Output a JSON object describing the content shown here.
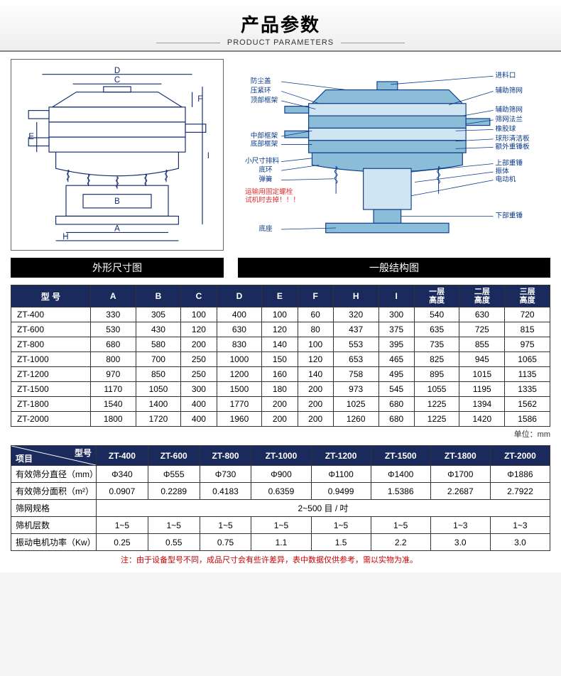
{
  "header": {
    "cn": "产品参数",
    "en": "PRODUCT PARAMETERS"
  },
  "captions": {
    "left": "外形尺寸图",
    "right": "一般结构图"
  },
  "diagram_left": {
    "labels": {
      "A": "A",
      "B": "B",
      "C": "C",
      "D": "D",
      "E": "E",
      "F": "F",
      "H": "H",
      "I": "I"
    },
    "line_color": "#102a6b",
    "bg": "#ffffff"
  },
  "diagram_right": {
    "labels": {
      "fcg": "防尘盖",
      "yjh": "压紧环",
      "dbkj": "顶部框架",
      "zbkj": "中部框架",
      "dbkj2": "底部框架",
      "xczl": "小尺寸排料",
      "dh": "底环",
      "th": "弹簧",
      "warn1": "运输用固定螺栓",
      "warn2": "试机时去掉！！！",
      "dz": "底座",
      "jlk": "进料口",
      "fzsw": "辅助筛网",
      "fzsw2": "辅助筛网",
      "swfl": "筛网法兰",
      "xjq": "橡胶球",
      "qxqjb": "球形清洁板",
      "ewzcb": "额外重锤板",
      "sbzc": "上部重锤",
      "zt": "振体",
      "ddj": "电动机",
      "xbzc": "下部重锤"
    },
    "fill_color": "#8bbdd9",
    "line_color": "#0a3a8a",
    "warn_color": "#e03030"
  },
  "table1": {
    "header": [
      "型 号",
      "A",
      "B",
      "C",
      "D",
      "E",
      "F",
      "H",
      "I",
      "一层\n高度",
      "二层\n高度",
      "三层\n高度"
    ],
    "rows": [
      [
        "ZT-400",
        "330",
        "305",
        "100",
        "400",
        "100",
        "60",
        "320",
        "300",
        "540",
        "630",
        "720"
      ],
      [
        "ZT-600",
        "530",
        "430",
        "120",
        "630",
        "120",
        "80",
        "437",
        "375",
        "635",
        "725",
        "815"
      ],
      [
        "ZT-800",
        "680",
        "580",
        "200",
        "830",
        "140",
        "100",
        "553",
        "395",
        "735",
        "855",
        "975"
      ],
      [
        "ZT-1000",
        "800",
        "700",
        "250",
        "1000",
        "150",
        "120",
        "653",
        "465",
        "825",
        "945",
        "1065"
      ],
      [
        "ZT-1200",
        "970",
        "850",
        "250",
        "1200",
        "160",
        "140",
        "758",
        "495",
        "895",
        "1015",
        "1135"
      ],
      [
        "ZT-1500",
        "1170",
        "1050",
        "300",
        "1500",
        "180",
        "200",
        "973",
        "545",
        "1055",
        "1195",
        "1335"
      ],
      [
        "ZT-1800",
        "1540",
        "1400",
        "400",
        "1770",
        "200",
        "200",
        "1025",
        "680",
        "1225",
        "1394",
        "1562"
      ],
      [
        "ZT-2000",
        "1800",
        "1720",
        "400",
        "1960",
        "200",
        "200",
        "1260",
        "680",
        "1225",
        "1420",
        "1586"
      ]
    ],
    "unit": "单位：mm"
  },
  "table2": {
    "corner_top": "型号",
    "corner_bot": "项目",
    "models": [
      "ZT-400",
      "ZT-600",
      "ZT-800",
      "ZT-1000",
      "ZT-1200",
      "ZT-1500",
      "ZT-1800",
      "ZT-2000"
    ],
    "rows": [
      {
        "label": "有效筛分直径（mm）",
        "cells": [
          "Φ340",
          "Φ555",
          "Φ730",
          "Φ900",
          "Φ1100",
          "Φ1400",
          "Φ1700",
          "Φ1886"
        ]
      },
      {
        "label": "有效筛分面积（m²）",
        "cells": [
          "0.0907",
          "0.2289",
          "0.4183",
          "0.6359",
          "0.9499",
          "1.5386",
          "2.2687",
          "2.7922"
        ]
      },
      {
        "label": "筛网规格",
        "span": true,
        "value": "2~500 目 / 吋"
      },
      {
        "label": "筛机层数",
        "cells": [
          "1~5",
          "1~5",
          "1~5",
          "1~5",
          "1~5",
          "1~5",
          "1~3",
          "1~3"
        ]
      },
      {
        "label": "振动电机功率（Kw）",
        "cells": [
          "0.25",
          "0.55",
          "0.75",
          "1.1",
          "1.5",
          "2.2",
          "3.0",
          "3.0"
        ]
      }
    ]
  },
  "footnote": "注：由于设备型号不同，成品尺寸会有些许差异，表中数据仅供参考，需以实物为准。"
}
